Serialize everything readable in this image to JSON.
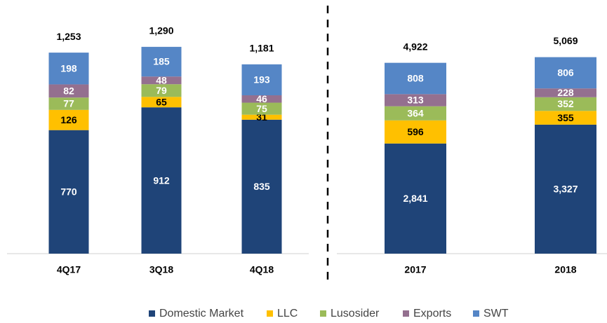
{
  "chart_data": [
    {
      "type": "stacked_bar",
      "categories": [
        "4Q17",
        "3Q18",
        "4Q18"
      ],
      "series": [
        {
          "name": "Domestic Market",
          "color": "#1f4478",
          "values": [
            770,
            912,
            835
          ]
        },
        {
          "name": "LLC",
          "color": "#ffc000",
          "values": [
            126,
            65,
            31
          ]
        },
        {
          "name": "Lusosider",
          "color": "#9bbb59",
          "values": [
            77,
            79,
            75
          ]
        },
        {
          "name": "Exports",
          "color": "#94708f",
          "values": [
            82,
            48,
            46
          ]
        },
        {
          "name": "SWT",
          "color": "#5586c6",
          "values": [
            198,
            185,
            193
          ]
        }
      ],
      "totals": [
        1253,
        1290,
        1181
      ],
      "total_labels": [
        "1,253",
        "1,290",
        "1,181"
      ],
      "ylim": [
        0,
        1450
      ]
    },
    {
      "type": "stacked_bar",
      "categories": [
        "2017",
        "2018"
      ],
      "series": [
        {
          "name": "Domestic Market",
          "color": "#1f4478",
          "values": [
            2841,
            3327
          ],
          "value_labels": [
            "2,841",
            "3,327"
          ]
        },
        {
          "name": "LLC",
          "color": "#ffc000",
          "values": [
            596,
            355
          ]
        },
        {
          "name": "Lusosider",
          "color": "#9bbb59",
          "values": [
            364,
            352
          ]
        },
        {
          "name": "Exports",
          "color": "#94708f",
          "values": [
            313,
            228
          ]
        },
        {
          "name": "SWT",
          "color": "#5586c6",
          "values": [
            808,
            806
          ]
        }
      ],
      "totals": [
        4922,
        5069
      ],
      "total_labels": [
        "4,922",
        "5,069"
      ],
      "ylim": [
        0,
        6000
      ]
    }
  ]
}
